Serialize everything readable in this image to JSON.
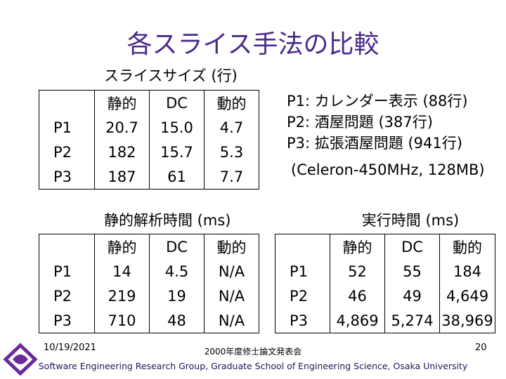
{
  "title": "各スライス手法の比較",
  "tables": [
    {
      "caption": "スライスサイズ (行)",
      "columns": [
        "静的",
        "DC",
        "動的"
      ],
      "rows": [
        {
          "label": "P1",
          "cells": [
            "20.7",
            "15.0",
            "4.7"
          ]
        },
        {
          "label": "P2",
          "cells": [
            "182",
            "15.7",
            "5.3"
          ]
        },
        {
          "label": "P3",
          "cells": [
            "187",
            "61",
            "7.7"
          ]
        }
      ]
    },
    {
      "caption": "静的解析時間 (ms)",
      "columns": [
        "静的",
        "DC",
        "動的"
      ],
      "rows": [
        {
          "label": "P1",
          "cells": [
            "14",
            "4.5",
            "N/A"
          ]
        },
        {
          "label": "P2",
          "cells": [
            "219",
            "19",
            "N/A"
          ]
        },
        {
          "label": "P3",
          "cells": [
            "710",
            "48",
            "N/A"
          ]
        }
      ]
    },
    {
      "caption": "実行時間 (ms)",
      "columns": [
        "静的",
        "DC",
        "動的"
      ],
      "rows": [
        {
          "label": "P1",
          "cells": [
            "52",
            "55",
            "184"
          ]
        },
        {
          "label": "P2",
          "cells": [
            "46",
            "49",
            "4,649"
          ]
        },
        {
          "label": "P3",
          "cells": [
            "4,869",
            "5,274",
            "38,969"
          ]
        }
      ]
    }
  ],
  "notes": [
    "P1: カレンダー表示 (88行)",
    "P2: 酒屋問題 (387行)",
    "P3: 拡張酒屋問題 (941行)"
  ],
  "spec": "(Celeron-450MHz, 128MB)",
  "footer": {
    "date": "10/19/2021",
    "event": "2000年度修士論文発表会",
    "page": "20",
    "affiliation": "Software Engineering Research Group, Graduate School of Engineering Science, Osaka University"
  }
}
